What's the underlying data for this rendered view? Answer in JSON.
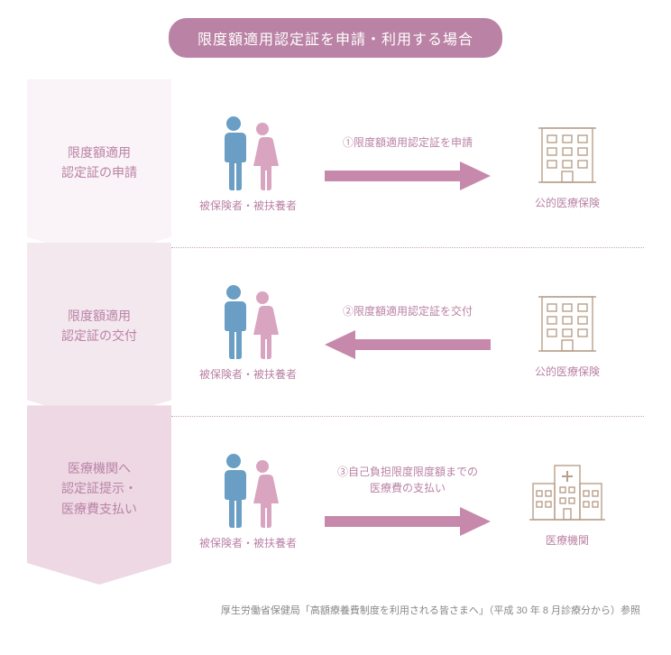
{
  "colors": {
    "accent": "#ba82a5",
    "accent_text": "#ba82a5",
    "step_bg_1": "#faf3f7",
    "step_bg_2": "#f4e8ef",
    "step_bg_3": "#edd8e4",
    "person_blue": "#6a9ec4",
    "person_pink": "#d9a4c0",
    "building_stroke": "#b99f8a",
    "hospital_stroke": "#b99f8a",
    "arrow_fill": "#c789ab",
    "footnote": "#888888"
  },
  "title": "限度額適用認定証を申請・利用する場合",
  "steps": [
    {
      "label": "限度額適用\n認定証の申請"
    },
    {
      "label": "限度額適用\n認定証の交付"
    },
    {
      "label": "医療機関へ\n認定証提示・\n医療費支払い"
    }
  ],
  "rows": [
    {
      "left_label": "被保険者・被扶養者",
      "arrow_dir": "right",
      "arrow_caption": "①限度額適用認定証を申請",
      "right_type": "insurance",
      "right_label": "公的医療保険"
    },
    {
      "left_label": "被保険者・被扶養者",
      "arrow_dir": "left",
      "arrow_caption": "②限度額適用認定証を交付",
      "right_type": "insurance",
      "right_label": "公的医療保険"
    },
    {
      "left_label": "被保険者・被扶養者",
      "arrow_dir": "right",
      "arrow_caption": "③自己負担限度限度額までの\n医療費の支払い",
      "right_type": "hospital",
      "right_label": "医療機関"
    }
  ],
  "footnote": "厚生労働省保健局「高額療養費制度を利用される皆さまへ」（平成 30 年 8 月診療分から）参照"
}
